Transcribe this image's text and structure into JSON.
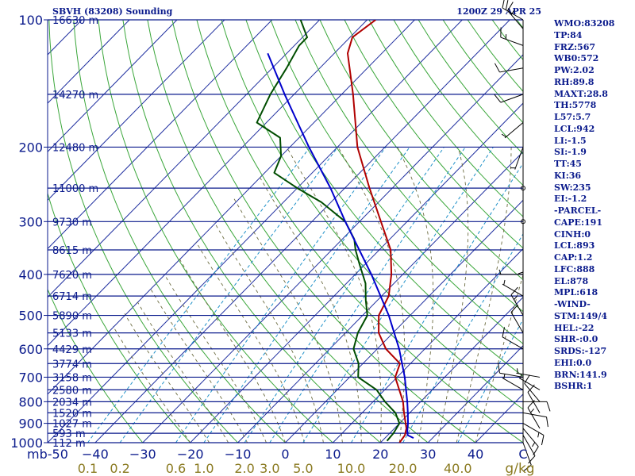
{
  "header": {
    "station": "SBVH (83208) Sounding",
    "time": "1200Z 29 APR 25"
  },
  "stats": [
    "WMO:83208",
    "TP:84",
    "FRZ:567",
    "WB0:572",
    "PW:2.02",
    "RH:89.8",
    "MAXT:28.8",
    "TH:5778",
    "L57:5.7",
    "LCL:942",
    "LI:-1.5",
    "SI:-1.9",
    "TT:45",
    "KI:36",
    "SW:235",
    "EI:-1.2",
    "-PARCEL-",
    "CAPE:191",
    "CINH:0",
    "LCL:893",
    "CAP:1.2",
    "LFC:888",
    "EL:878",
    "MPL:618",
    "-WIND-",
    "STM:149/4",
    "HEL:-22",
    "SHR-:0.0",
    "SRDS:-127",
    "EHI:0.0",
    "BRN:141.9",
    "BSHR:1"
  ],
  "chart_data": {
    "type": "line",
    "diagram": "skew-T log-P",
    "ylim": [
      1000,
      100
    ],
    "xlim": [
      -50,
      50
    ],
    "y_scale": "log (pressure, mb)",
    "pressure_ticks": [
      100,
      200,
      300,
      400,
      500,
      600,
      700,
      800,
      900,
      1000
    ],
    "pressure_tick_labels": [
      "100",
      "200",
      "300",
      "400",
      "500",
      "600",
      "700",
      "800",
      "900",
      "1000"
    ],
    "temperature_ticks": [
      -50,
      -40,
      -30,
      -20,
      -10,
      0,
      10,
      20,
      30,
      40,
      50
    ],
    "temperature_tick_labels": [
      "mb-50",
      "−40",
      "−30",
      "−20",
      "−10",
      "0",
      "10",
      "20",
      "30",
      "40",
      "C"
    ],
    "mixing_ratio_ticks": [
      0.1,
      0.2,
      0.6,
      1.0,
      2.0,
      3.0,
      5.0,
      10.0,
      20.0,
      40.0
    ],
    "mixing_ratio_tick_labels": [
      "0.1",
      "0.2",
      "0.6",
      "1.0",
      "2.0",
      "3.0",
      "5.0",
      "10.0",
      "20.0",
      "40.0"
    ],
    "mixing_ratio_unit": "g/kg",
    "height_levels": [
      {
        "p": 100,
        "label": "16630 m"
      },
      {
        "p": 150,
        "label": "14270 m"
      },
      {
        "p": 200,
        "label": "12480 m"
      },
      {
        "p": 250,
        "label": "11000 m"
      },
      {
        "p": 300,
        "label": "9730 m"
      },
      {
        "p": 350,
        "label": "8615 m"
      },
      {
        "p": 400,
        "label": "7620 m"
      },
      {
        "p": 450,
        "label": "6714 m"
      },
      {
        "p": 500,
        "label": "5890 m"
      },
      {
        "p": 550,
        "label": "5133 m"
      },
      {
        "p": 600,
        "label": "4429 m"
      },
      {
        "p": 650,
        "label": "3774 m"
      },
      {
        "p": 700,
        "label": "3158 m"
      },
      {
        "p": 750,
        "label": "2580 m"
      },
      {
        "p": 800,
        "label": "2034 m"
      },
      {
        "p": 850,
        "label": "1520 m"
      },
      {
        "p": 900,
        "label": "1027 m"
      },
      {
        "p": 950,
        "label": "593 m"
      },
      {
        "p": 1000,
        "label": "112 m"
      }
    ],
    "series": [
      {
        "color": "#b00000",
        "points": [
          {
            "p": 1000,
            "t": 24.0
          },
          {
            "p": 960,
            "t": 23.6
          },
          {
            "p": 925,
            "t": 22.5
          },
          {
            "p": 850,
            "t": 18.8
          },
          {
            "p": 800,
            "t": 16.3
          },
          {
            "p": 700,
            "t": 9.6
          },
          {
            "p": 650,
            "t": 7.8
          },
          {
            "p": 600,
            "t": 1.8
          },
          {
            "p": 550,
            "t": -3.0
          },
          {
            "p": 500,
            "t": -6.6
          },
          {
            "p": 450,
            "t": -8.5
          },
          {
            "p": 400,
            "t": -12.4
          },
          {
            "p": 350,
            "t": -17.6
          },
          {
            "p": 300,
            "t": -25.5
          },
          {
            "p": 250,
            "t": -34.8
          },
          {
            "p": 200,
            "t": -45.8
          },
          {
            "p": 150,
            "t": -57.6
          },
          {
            "p": 120,
            "t": -67.2
          },
          {
            "p": 110,
            "t": -69.5
          },
          {
            "p": 100,
            "t": -68.2
          }
        ]
      },
      {
        "color": "#004d00",
        "points": [
          {
            "p": 990,
            "t": 21.0
          },
          {
            "p": 950,
            "t": 20.8
          },
          {
            "p": 900,
            "t": 20.0
          },
          {
            "p": 850,
            "t": 17.0
          },
          {
            "p": 800,
            "t": 12.5
          },
          {
            "p": 750,
            "t": 8.3
          },
          {
            "p": 700,
            "t": 1.8
          },
          {
            "p": 650,
            "t": -0.9
          },
          {
            "p": 600,
            "t": -5.0
          },
          {
            "p": 550,
            "t": -7.4
          },
          {
            "p": 500,
            "t": -9.0
          },
          {
            "p": 460,
            "t": -12.5
          },
          {
            "p": 420,
            "t": -16.0
          },
          {
            "p": 380,
            "t": -21.0
          },
          {
            "p": 350,
            "t": -25.0
          },
          {
            "p": 330,
            "t": -27.5
          },
          {
            "p": 300,
            "t": -33.0
          },
          {
            "p": 270,
            "t": -42.0
          },
          {
            "p": 250,
            "t": -50.0
          },
          {
            "p": 230,
            "t": -58.0
          },
          {
            "p": 210,
            "t": -60.0
          },
          {
            "p": 190,
            "t": -64.0
          },
          {
            "p": 175,
            "t": -72.0
          },
          {
            "p": 150,
            "t": -75.0
          },
          {
            "p": 130,
            "t": -77.0
          },
          {
            "p": 115,
            "t": -79.0
          },
          {
            "p": 110,
            "t": -79.0
          },
          {
            "p": 100,
            "t": -84.0
          }
        ]
      },
      {
        "color": "#0000cc",
        "points": [
          {
            "p": 975,
            "t": 26.0
          },
          {
            "p": 960,
            "t": 24.2
          },
          {
            "p": 940,
            "t": 23.3
          },
          {
            "p": 900,
            "t": 21.8
          },
          {
            "p": 850,
            "t": 19.6
          },
          {
            "p": 800,
            "t": 17.2
          },
          {
            "p": 700,
            "t": 11.6
          },
          {
            "p": 600,
            "t": 4.6
          },
          {
            "p": 500,
            "t": -4.5
          },
          {
            "p": 400,
            "t": -16.6
          },
          {
            "p": 300,
            "t": -33.0
          },
          {
            "p": 250,
            "t": -43.0
          },
          {
            "p": 200,
            "t": -56.0
          },
          {
            "p": 150,
            "t": -72.0
          },
          {
            "p": 120,
            "t": -84.0
          }
        ]
      }
    ],
    "wind_barbs": [
      {
        "p": 1000,
        "dir": 160,
        "spd": 10
      },
      {
        "p": 960,
        "dir": 150,
        "spd": 10
      },
      {
        "p": 925,
        "dir": 140,
        "spd": 15
      },
      {
        "p": 900,
        "dir": 120,
        "spd": 15
      },
      {
        "p": 850,
        "dir": 100,
        "spd": 10
      },
      {
        "p": 800,
        "dir": 90,
        "spd": 10
      },
      {
        "p": 750,
        "dir": 300,
        "spd": 5
      },
      {
        "p": 700,
        "dir": 280,
        "spd": 10
      },
      {
        "p": 600,
        "dir": 300,
        "spd": 10
      },
      {
        "p": 550,
        "dir": 330,
        "spd": 10
      },
      {
        "p": 500,
        "dir": 330,
        "spd": 15
      },
      {
        "p": 450,
        "dir": 300,
        "spd": 5
      },
      {
        "p": 400,
        "dir": 270,
        "spd": 5
      },
      {
        "p": 350,
        "dir": 180,
        "spd": 5
      },
      {
        "p": 300,
        "dir": 0,
        "spd": 0
      },
      {
        "p": 250,
        "dir": 0,
        "spd": 0
      },
      {
        "p": 200,
        "dir": 200,
        "spd": 5
      },
      {
        "p": 175,
        "dir": 230,
        "spd": 5
      },
      {
        "p": 150,
        "dir": 250,
        "spd": 10
      },
      {
        "p": 130,
        "dir": 260,
        "spd": 10
      },
      {
        "p": 115,
        "dir": 290,
        "spd": 15
      },
      {
        "p": 105,
        "dir": 320,
        "spd": 15
      },
      {
        "p": 100,
        "dir": 300,
        "spd": 20
      }
    ],
    "bulk_shear_barbs": [
      {
        "p": 925,
        "dir": 330,
        "spd": 15
      },
      {
        "p": 850,
        "dir": 330,
        "spd": 10
      },
      {
        "p": 800,
        "dir": 320,
        "spd": 10
      },
      {
        "p": 750,
        "dir": 300,
        "spd": 5
      },
      {
        "p": 700,
        "dir": 280,
        "spd": 5
      }
    ],
    "grid": true
  }
}
